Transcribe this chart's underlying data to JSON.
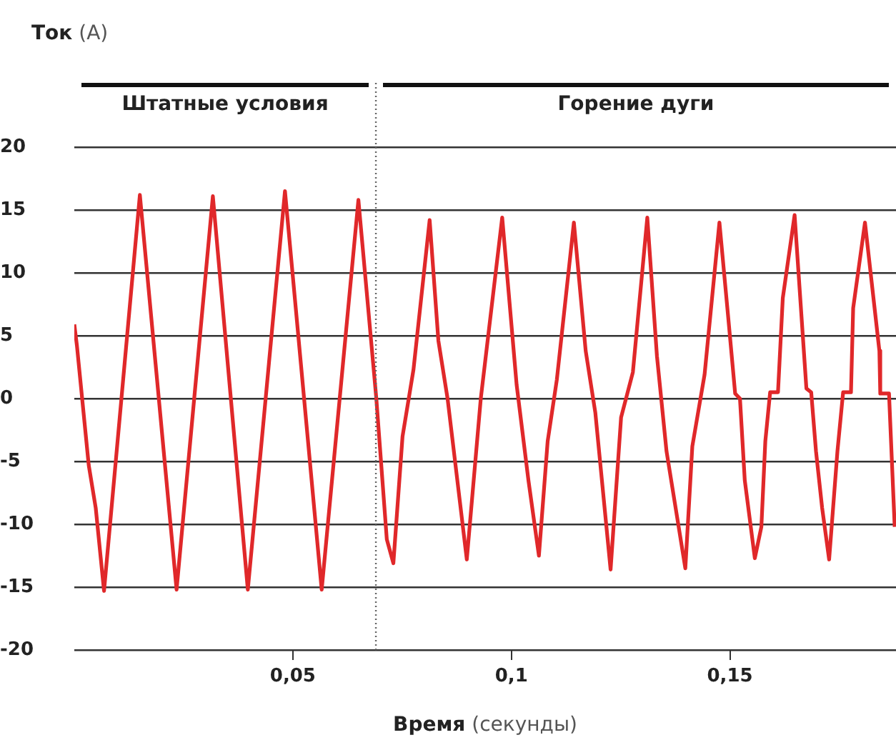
{
  "chart_data": {
    "type": "line",
    "xlabel": "Время (секунды)",
    "ylabel": "Ток (А)",
    "x": [
      0,
      0.0006,
      0.0033,
      0.0049,
      0.0068,
      0.015,
      0.0234,
      0.0317,
      0.0397,
      0.0482,
      0.0566,
      0.065,
      0.0691,
      0.0715,
      0.073,
      0.0751,
      0.0776,
      0.0813,
      0.0833,
      0.0854,
      0.0898,
      0.093,
      0.0979,
      0.1012,
      0.1039,
      0.1063,
      0.1083,
      0.1104,
      0.1143,
      0.117,
      0.1192,
      0.1227,
      0.1251,
      0.1278,
      0.1311,
      0.1333,
      0.1355,
      0.1398,
      0.1414,
      0.1442,
      0.1476,
      0.1496,
      0.1512,
      0.1523,
      0.1534,
      0.1557,
      0.1572,
      0.1581,
      0.1592,
      0.161,
      0.1621,
      0.1648,
      0.1675,
      0.1686,
      0.1697,
      0.1711,
      0.1727,
      0.1746,
      0.1759,
      0.1777,
      0.1782,
      0.1809,
      0.1842,
      0.1844,
      0.1864,
      0.1877
    ],
    "values": [
      5.9,
      4.2,
      -5.3,
      -8.7,
      -15.3,
      16.2,
      -15.2,
      16.1,
      -15.2,
      16.5,
      -15.2,
      15.8,
      0,
      -11.2,
      -13.1,
      -3.0,
      2.3,
      14.2,
      4.6,
      0,
      -12.8,
      0,
      14.4,
      1.1,
      -6.5,
      -12.5,
      -3.4,
      1.5,
      14.0,
      3.8,
      -1.1,
      -13.6,
      -1.5,
      2.1,
      14.4,
      3.4,
      -4.2,
      -13.5,
      -3.8,
      1.9,
      14.0,
      6.5,
      0.4,
      0,
      -6.5,
      -12.7,
      -10.2,
      -3.4,
      0.5,
      0.5,
      8.0,
      14.6,
      0.8,
      0.5,
      -4.2,
      -8.7,
      -12.8,
      -4.2,
      0.5,
      0.5,
      7.2,
      14.0,
      3.8,
      0.4,
      0.4,
      -10.2
    ],
    "color": "#e0282a",
    "xlim": [
      0,
      0.188
    ],
    "xticks": [
      {
        "value": 0.05,
        "label": "0,05"
      },
      {
        "value": 0.1,
        "label": "0,1"
      },
      {
        "value": 0.15,
        "label": "0,15"
      }
    ],
    "ylim": [
      -20,
      20
    ],
    "yticks": [
      -20,
      -15,
      -10,
      -5,
      0,
      5,
      10,
      15,
      20
    ],
    "grid": "y",
    "legend": false,
    "marker": "none",
    "line_style": "solid",
    "ref_lines": [
      {
        "axis": "x",
        "value": 0.069,
        "line_style": "dotted"
      }
    ],
    "annotations": [
      "Штатные условия",
      "Горение дуги"
    ]
  }
}
